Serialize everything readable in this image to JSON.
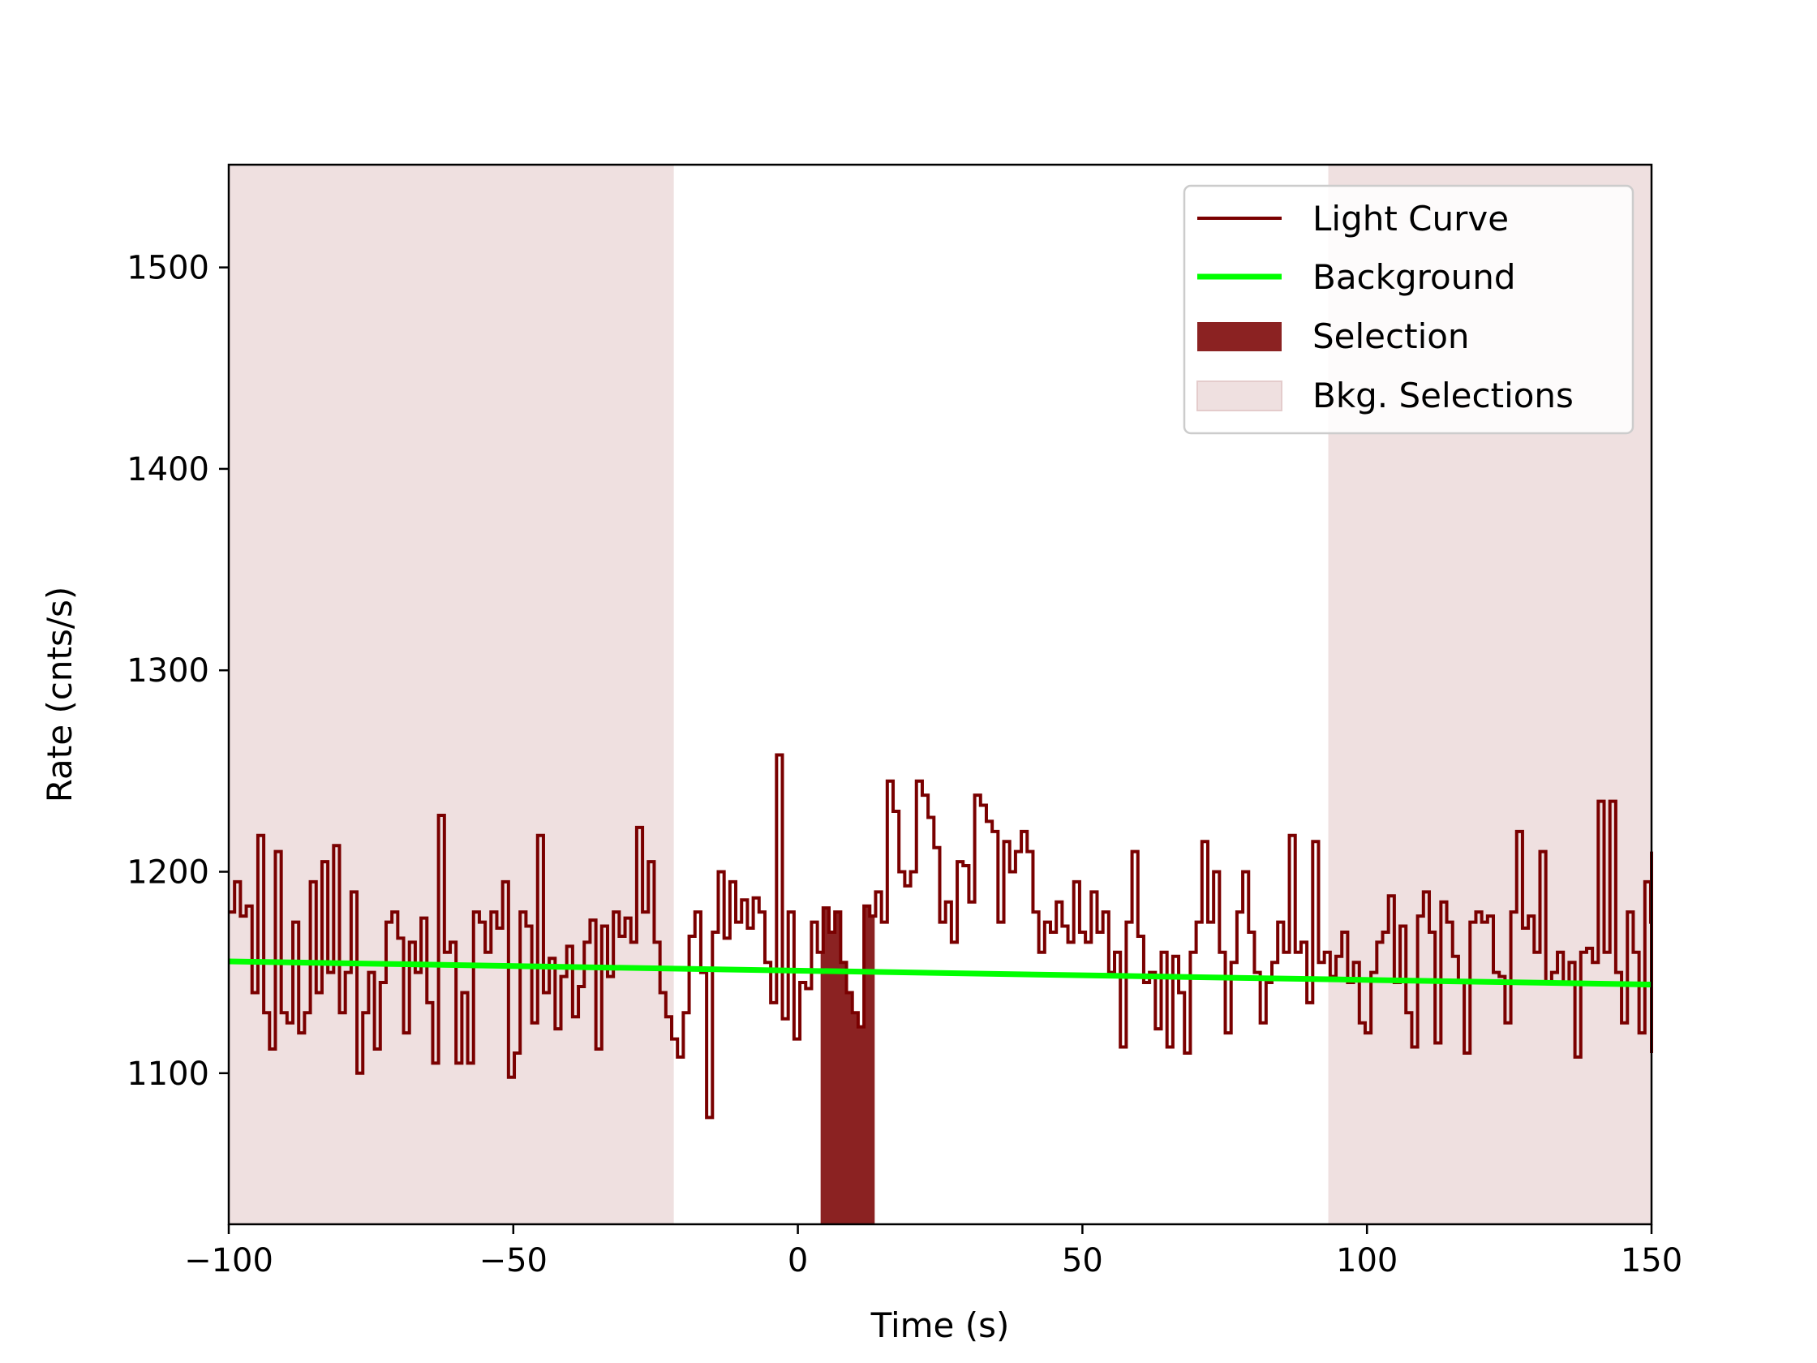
{
  "chart_data": {
    "type": "line",
    "title": "",
    "xlabel": "Time (s)",
    "ylabel": "Rate (cnts/s)",
    "xlim": [
      -100,
      150
    ],
    "ylim": [
      1025,
      1551
    ],
    "xticks": [
      -100,
      -50,
      0,
      50,
      100,
      150
    ],
    "xtick_labels": [
      "−100",
      "−50",
      "0",
      "50",
      "100",
      "150"
    ],
    "yticks": [
      1100,
      1200,
      1300,
      1400,
      1500
    ],
    "ytick_labels": [
      "1100",
      "1200",
      "1300",
      "1400",
      "1500"
    ],
    "grid": false,
    "legend_position": "top-right",
    "series": [
      {
        "name": "Light Curve",
        "kind": "step",
        "color": "#7a0000",
        "bin_width": 1.024,
        "x_start": -100,
        "values": [
          1180,
          1195,
          1178,
          1183,
          1140,
          1218,
          1130,
          1112,
          1210,
          1130,
          1125,
          1175,
          1120,
          1130,
          1195,
          1140,
          1205,
          1150,
          1213,
          1130,
          1150,
          1190,
          1100,
          1130,
          1150,
          1112,
          1145,
          1175,
          1180,
          1167,
          1120,
          1165,
          1150,
          1177,
          1135,
          1105,
          1228,
          1160,
          1165,
          1105,
          1140,
          1105,
          1180,
          1175,
          1160,
          1180,
          1172,
          1195,
          1098,
          1110,
          1180,
          1173,
          1125,
          1218,
          1140,
          1157,
          1122,
          1148,
          1163,
          1128,
          1143,
          1165,
          1176,
          1112,
          1173,
          1148,
          1180,
          1168,
          1177,
          1165,
          1222,
          1180,
          1205,
          1165,
          1140,
          1128,
          1117,
          1108,
          1130,
          1168,
          1180,
          1150,
          1078,
          1170,
          1200,
          1167,
          1195,
          1175,
          1186,
          1172,
          1187,
          1180,
          1155,
          1135,
          1258,
          1127,
          1180,
          1117,
          1145,
          1142,
          1175,
          1160,
          1182,
          1170,
          1180,
          1155,
          1140,
          1130,
          1123,
          1183,
          1178,
          1190,
          1175,
          1245,
          1230,
          1200,
          1193,
          1200,
          1245,
          1238,
          1227,
          1212,
          1175,
          1185,
          1165,
          1205,
          1203,
          1185,
          1238,
          1233,
          1225,
          1220,
          1175,
          1215,
          1200,
          1210,
          1220,
          1210,
          1180,
          1160,
          1175,
          1170,
          1185,
          1173,
          1165,
          1195,
          1170,
          1165,
          1190,
          1170,
          1180,
          1150,
          1160,
          1113,
          1175,
          1210,
          1168,
          1145,
          1150,
          1122,
          1160,
          1113,
          1158,
          1140,
          1110,
          1160,
          1175,
          1215,
          1175,
          1200,
          1160,
          1120,
          1155,
          1180,
          1200,
          1170,
          1150,
          1125,
          1145,
          1155,
          1175,
          1160,
          1218,
          1160,
          1165,
          1135,
          1215,
          1155,
          1160,
          1148,
          1158,
          1170,
          1145,
          1155,
          1125,
          1120,
          1150,
          1165,
          1170,
          1188,
          1145,
          1173,
          1130,
          1113,
          1178,
          1190,
          1170,
          1115,
          1185,
          1175,
          1158,
          1145,
          1110,
          1175,
          1180,
          1175,
          1178,
          1150,
          1148,
          1125,
          1180,
          1220,
          1172,
          1178,
          1160,
          1210,
          1145,
          1150,
          1160,
          1145,
          1155,
          1108,
          1160,
          1162,
          1155,
          1235,
          1160,
          1235,
          1150,
          1125,
          1180,
          1160,
          1120,
          1195,
          1175,
          1130,
          1155,
          1210,
          1185,
          1165,
          1150,
          1170,
          1115,
          1160,
          1145,
          1170,
          1150,
          1140,
          1155,
          1170,
          1110,
          1170,
          1145,
          1135,
          1160,
          1120,
          1180,
          1140,
          1155,
          1130,
          1145,
          1165,
          1150,
          1125,
          1155,
          1175,
          1190,
          1158,
          1165
        ]
      },
      {
        "name": "Background",
        "kind": "line",
        "color": "#00ff00",
        "x": [
          -100,
          150
        ],
        "values": [
          1155.5,
          1144
        ]
      }
    ],
    "selection": {
      "name": "Selection",
      "color": "#8b2222",
      "range": [
        4,
        13.5
      ]
    },
    "bkg_selections": {
      "name": "Bkg. Selections",
      "color": "#efe0e0",
      "ranges": [
        [
          -100,
          -21.8
        ],
        [
          93.2,
          150
        ]
      ]
    }
  }
}
